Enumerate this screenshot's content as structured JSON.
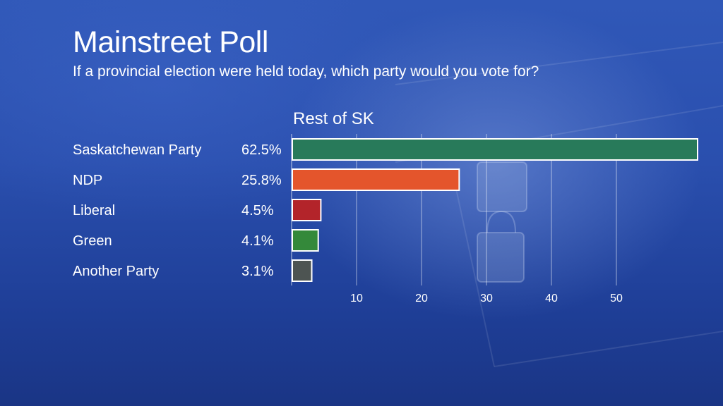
{
  "header": {
    "title": "Mainstreet Poll",
    "subtitle": "If a provincial election were held today, which party would you vote for?"
  },
  "chart_data": {
    "type": "bar",
    "orientation": "horizontal",
    "panel_title": "Rest of SK",
    "categories": [
      "Saskatchewan Party",
      "NDP",
      "Liberal",
      "Green",
      "Another Party"
    ],
    "values": [
      62.5,
      25.8,
      4.5,
      4.1,
      3.1
    ],
    "value_labels": [
      "62.5%",
      "25.8%",
      "4.5%",
      "4.1%",
      "3.1%"
    ],
    "colors": [
      "#287a5a",
      "#e4552c",
      "#b3242a",
      "#34893a",
      "#4d5452"
    ],
    "xlim": [
      0,
      62.5
    ],
    "xticks": [
      10,
      20,
      30,
      40,
      50
    ],
    "grid": true,
    "background_color": "#2a4fae"
  }
}
